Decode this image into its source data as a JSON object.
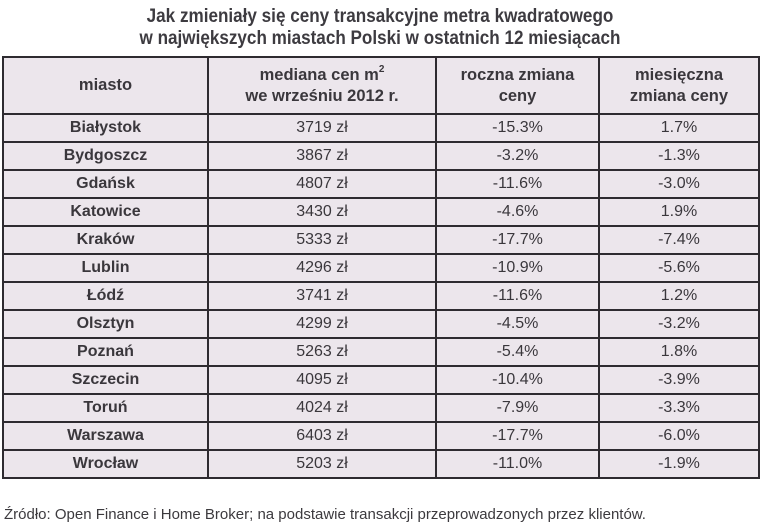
{
  "title": {
    "line1": "Jak zmieniały się ceny transakcyjne metra kwadratowego",
    "line2": "w największych miastach Polski w ostatnich 12 miesiącach"
  },
  "table": {
    "headers": {
      "city": "miasto",
      "median_line1": "mediana cen m",
      "median_sup": "2",
      "median_line2": "we wrześniu 2012 r.",
      "annual_line1": "roczna zmiana",
      "annual_line2": "ceny",
      "monthly_line1": "miesięczna",
      "monthly_line2": "zmiana ceny"
    },
    "rows": [
      {
        "city": "Białystok",
        "median": "3719 zł",
        "annual": "-15.3%",
        "monthly": "1.7%"
      },
      {
        "city": "Bydgoszcz",
        "median": "3867 zł",
        "annual": "-3.2%",
        "monthly": "-1.3%"
      },
      {
        "city": "Gdańsk",
        "median": "4807 zł",
        "annual": "-11.6%",
        "monthly": "-3.0%"
      },
      {
        "city": "Katowice",
        "median": "3430 zł",
        "annual": "-4.6%",
        "monthly": "1.9%"
      },
      {
        "city": "Kraków",
        "median": "5333 zł",
        "annual": "-17.7%",
        "monthly": "-7.4%"
      },
      {
        "city": "Lublin",
        "median": "4296 zł",
        "annual": "-10.9%",
        "monthly": "-5.6%"
      },
      {
        "city": "Łódź",
        "median": "3741 zł",
        "annual": "-11.6%",
        "monthly": "1.2%"
      },
      {
        "city": "Olsztyn",
        "median": "4299 zł",
        "annual": "-4.5%",
        "monthly": "-3.2%"
      },
      {
        "city": "Poznań",
        "median": "5263 zł",
        "annual": "-5.4%",
        "monthly": "1.8%"
      },
      {
        "city": "Szczecin",
        "median": "4095 zł",
        "annual": "-10.4%",
        "monthly": "-3.9%"
      },
      {
        "city": "Toruń",
        "median": "4024 zł",
        "annual": "-7.9%",
        "monthly": "-3.3%"
      },
      {
        "city": "Warszawa",
        "median": "6403 zł",
        "annual": "-17.7%",
        "monthly": "-6.0%"
      },
      {
        "city": "Wrocław",
        "median": "5203 zł",
        "annual": "-11.0%",
        "monthly": "-1.9%"
      }
    ]
  },
  "footer": "Źródło: Open Finance i Home Broker; na podstawie transakcji przeprowadzonych przez klientów.",
  "colors": {
    "table_background": "#ece6ec",
    "border": "#2e2b30",
    "text": "#3a373c"
  }
}
